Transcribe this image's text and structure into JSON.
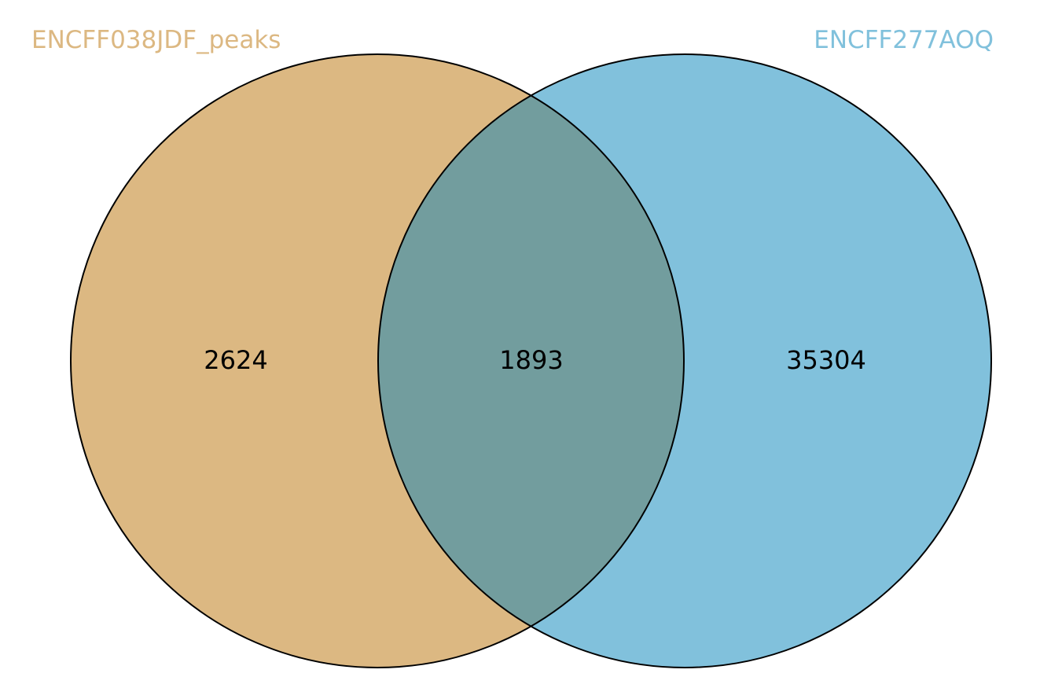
{
  "diagram": {
    "type": "venn2",
    "sets": [
      {
        "label": "ENCFF038JDF_peaks",
        "color": "#dcb882"
      },
      {
        "label": "ENCFF277AOQ",
        "color": "#81c1dc"
      }
    ],
    "overlap_color": "#729d9e",
    "outline_color": "#000000",
    "counts": {
      "only_a": "2624",
      "both": "1893",
      "only_b": "35304"
    }
  }
}
